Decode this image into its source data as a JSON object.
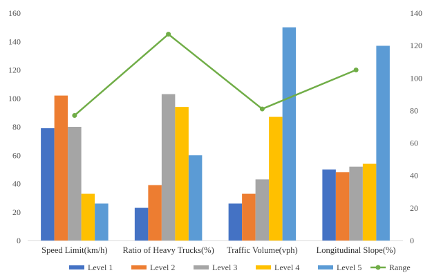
{
  "chart_data": {
    "type": "bar",
    "categories": [
      "Speed Limit(km/h)",
      "Ratio of Heavy Trucks(%)",
      "Traffic Volume(vph)",
      "Longitudinal Slope(%)"
    ],
    "series": [
      {
        "name": "Level 1",
        "color": "#4472C4",
        "values": [
          79,
          23,
          26,
          50
        ]
      },
      {
        "name": "Level 2",
        "color": "#ED7D31",
        "values": [
          102,
          39,
          33,
          48
        ]
      },
      {
        "name": "Level 3",
        "color": "#A5A5A5",
        "values": [
          80,
          103,
          43,
          52
        ]
      },
      {
        "name": "Level 4",
        "color": "#FFC000",
        "values": [
          33,
          94,
          87,
          54
        ]
      },
      {
        "name": "Level 5",
        "color": "#5B9BD5",
        "values": [
          26,
          60,
          150,
          137
        ]
      }
    ],
    "line_series": {
      "name": "Range",
      "color": "#70AD47",
      "axis": "right",
      "values": [
        77,
        127,
        81,
        105
      ]
    },
    "y_left": {
      "ylim": [
        0,
        160
      ],
      "ticks": [
        "0",
        "20",
        "40",
        "60",
        "80",
        "100",
        "120",
        "140",
        "160"
      ]
    },
    "y_right": {
      "ylim": [
        0,
        140
      ],
      "ticks": [
        "0",
        "20",
        "40",
        "60",
        "80",
        "100",
        "120",
        "140"
      ]
    },
    "legend_position": "bottom",
    "grid": false
  }
}
